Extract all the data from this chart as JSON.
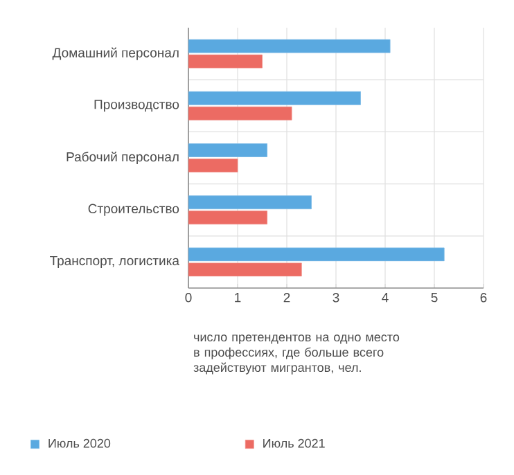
{
  "chart_data": {
    "type": "bar",
    "orientation": "horizontal",
    "categories": [
      "Домашний персонал",
      "Производство",
      "Рабочий персонал",
      "Строительство",
      "Транспорт, логистика"
    ],
    "series": [
      {
        "name": "Июль 2020",
        "color": "#5aa9e0",
        "values": [
          4.1,
          3.5,
          1.6,
          2.5,
          5.2
        ]
      },
      {
        "name": "Июль 2021",
        "color": "#ec6b63",
        "values": [
          1.5,
          2.1,
          1.0,
          1.6,
          2.3
        ]
      }
    ],
    "xlabel": "число претендентов на одно место в профессиях, где больше всего задействуют мигрантов, чел.",
    "xlim": [
      0,
      6
    ],
    "xticks": [
      0,
      1,
      2,
      3,
      4,
      5,
      6
    ],
    "grid": true,
    "legend": "bottom"
  }
}
